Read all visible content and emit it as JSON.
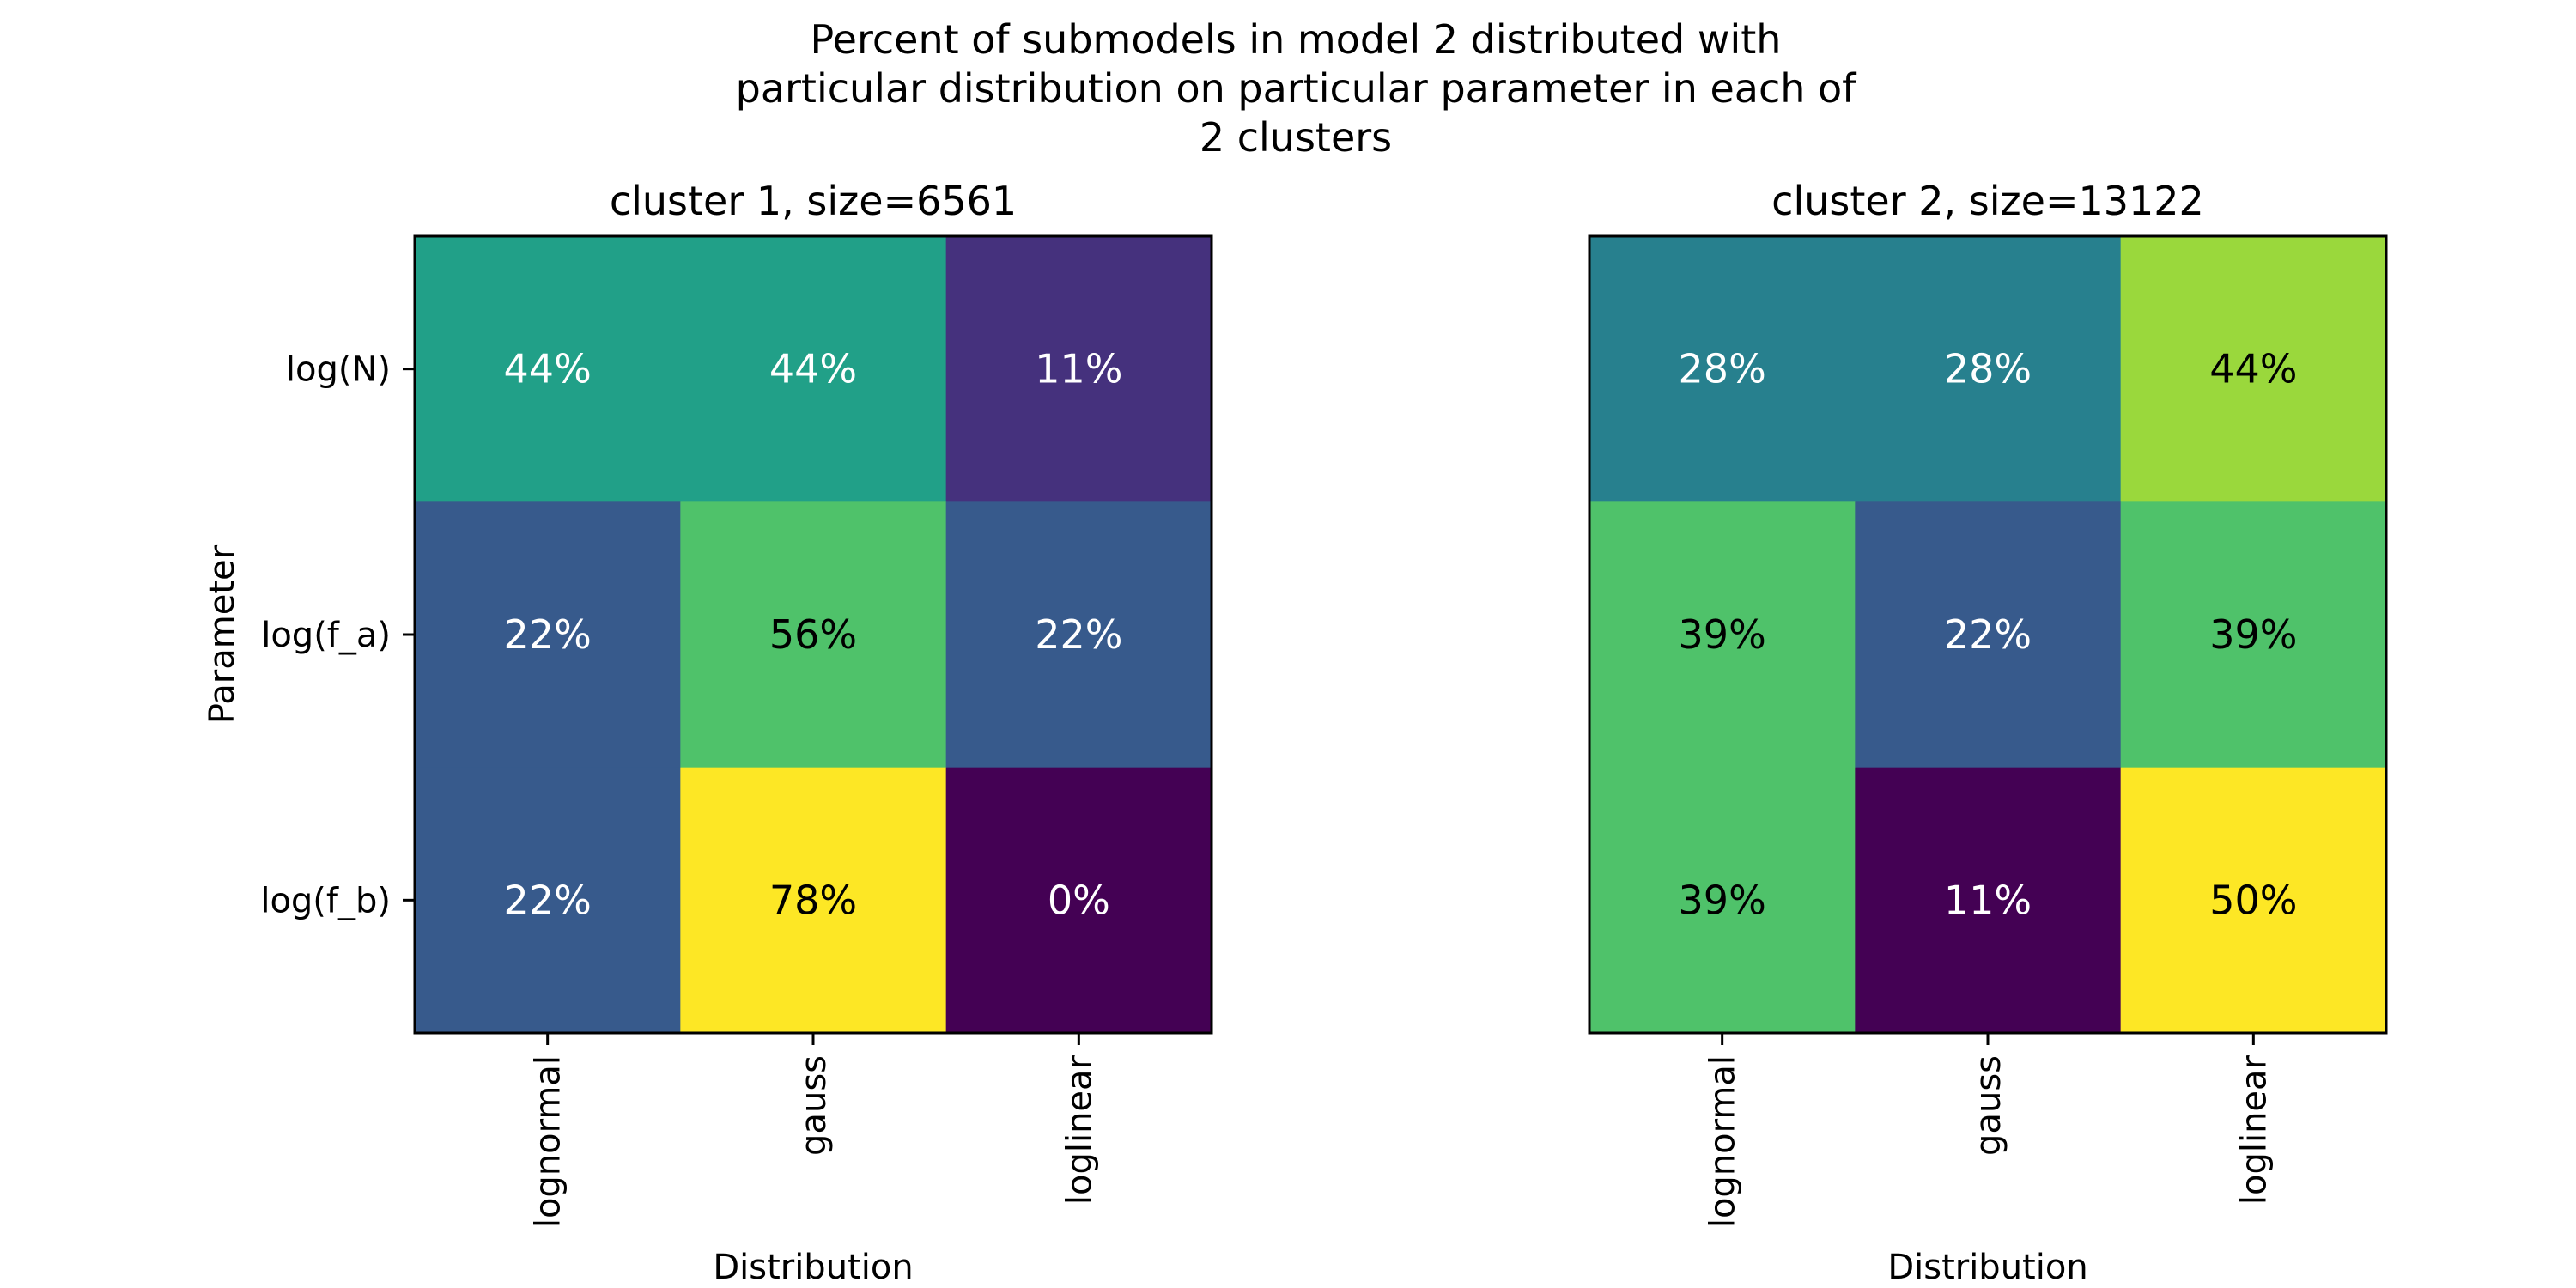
{
  "title_lines": [
    "Percent of submodels in model 2 distributed with",
    "particular distribution on particular parameter in each of",
    "2 clusters"
  ],
  "chart_data": [
    {
      "type": "heatmap",
      "title": "cluster 1, size=6561",
      "xlabel": "Distribution",
      "ylabel": "Parameter",
      "x_categories": [
        "lognormal",
        "gauss",
        "loglinear"
      ],
      "y_categories": [
        "log(N)",
        "log(f_a)",
        "log(f_b)"
      ],
      "values": [
        [
          44,
          44,
          11
        ],
        [
          22,
          56,
          22
        ],
        [
          22,
          78,
          0
        ]
      ],
      "labels": [
        [
          "44%",
          "44%",
          "11%"
        ],
        [
          "22%",
          "56%",
          "22%"
        ],
        [
          "22%",
          "78%",
          "0%"
        ]
      ],
      "colormap": "viridis",
      "vmin": 0,
      "vmax": 78,
      "show_y_ticks": true
    },
    {
      "type": "heatmap",
      "title": "cluster 2, size=13122",
      "xlabel": "Distribution",
      "ylabel": "",
      "x_categories": [
        "lognormal",
        "gauss",
        "loglinear"
      ],
      "y_categories": [
        "log(N)",
        "log(f_a)",
        "log(f_b)"
      ],
      "values": [
        [
          28,
          28,
          44
        ],
        [
          39,
          22,
          39
        ],
        [
          39,
          11,
          50
        ]
      ],
      "labels": [
        [
          "28%",
          "28%",
          "44%"
        ],
        [
          "39%",
          "22%",
          "39%"
        ],
        [
          "39%",
          "11%",
          "50%"
        ]
      ],
      "colormap": "viridis",
      "vmin": 11,
      "vmax": 50,
      "show_y_ticks": false
    }
  ]
}
